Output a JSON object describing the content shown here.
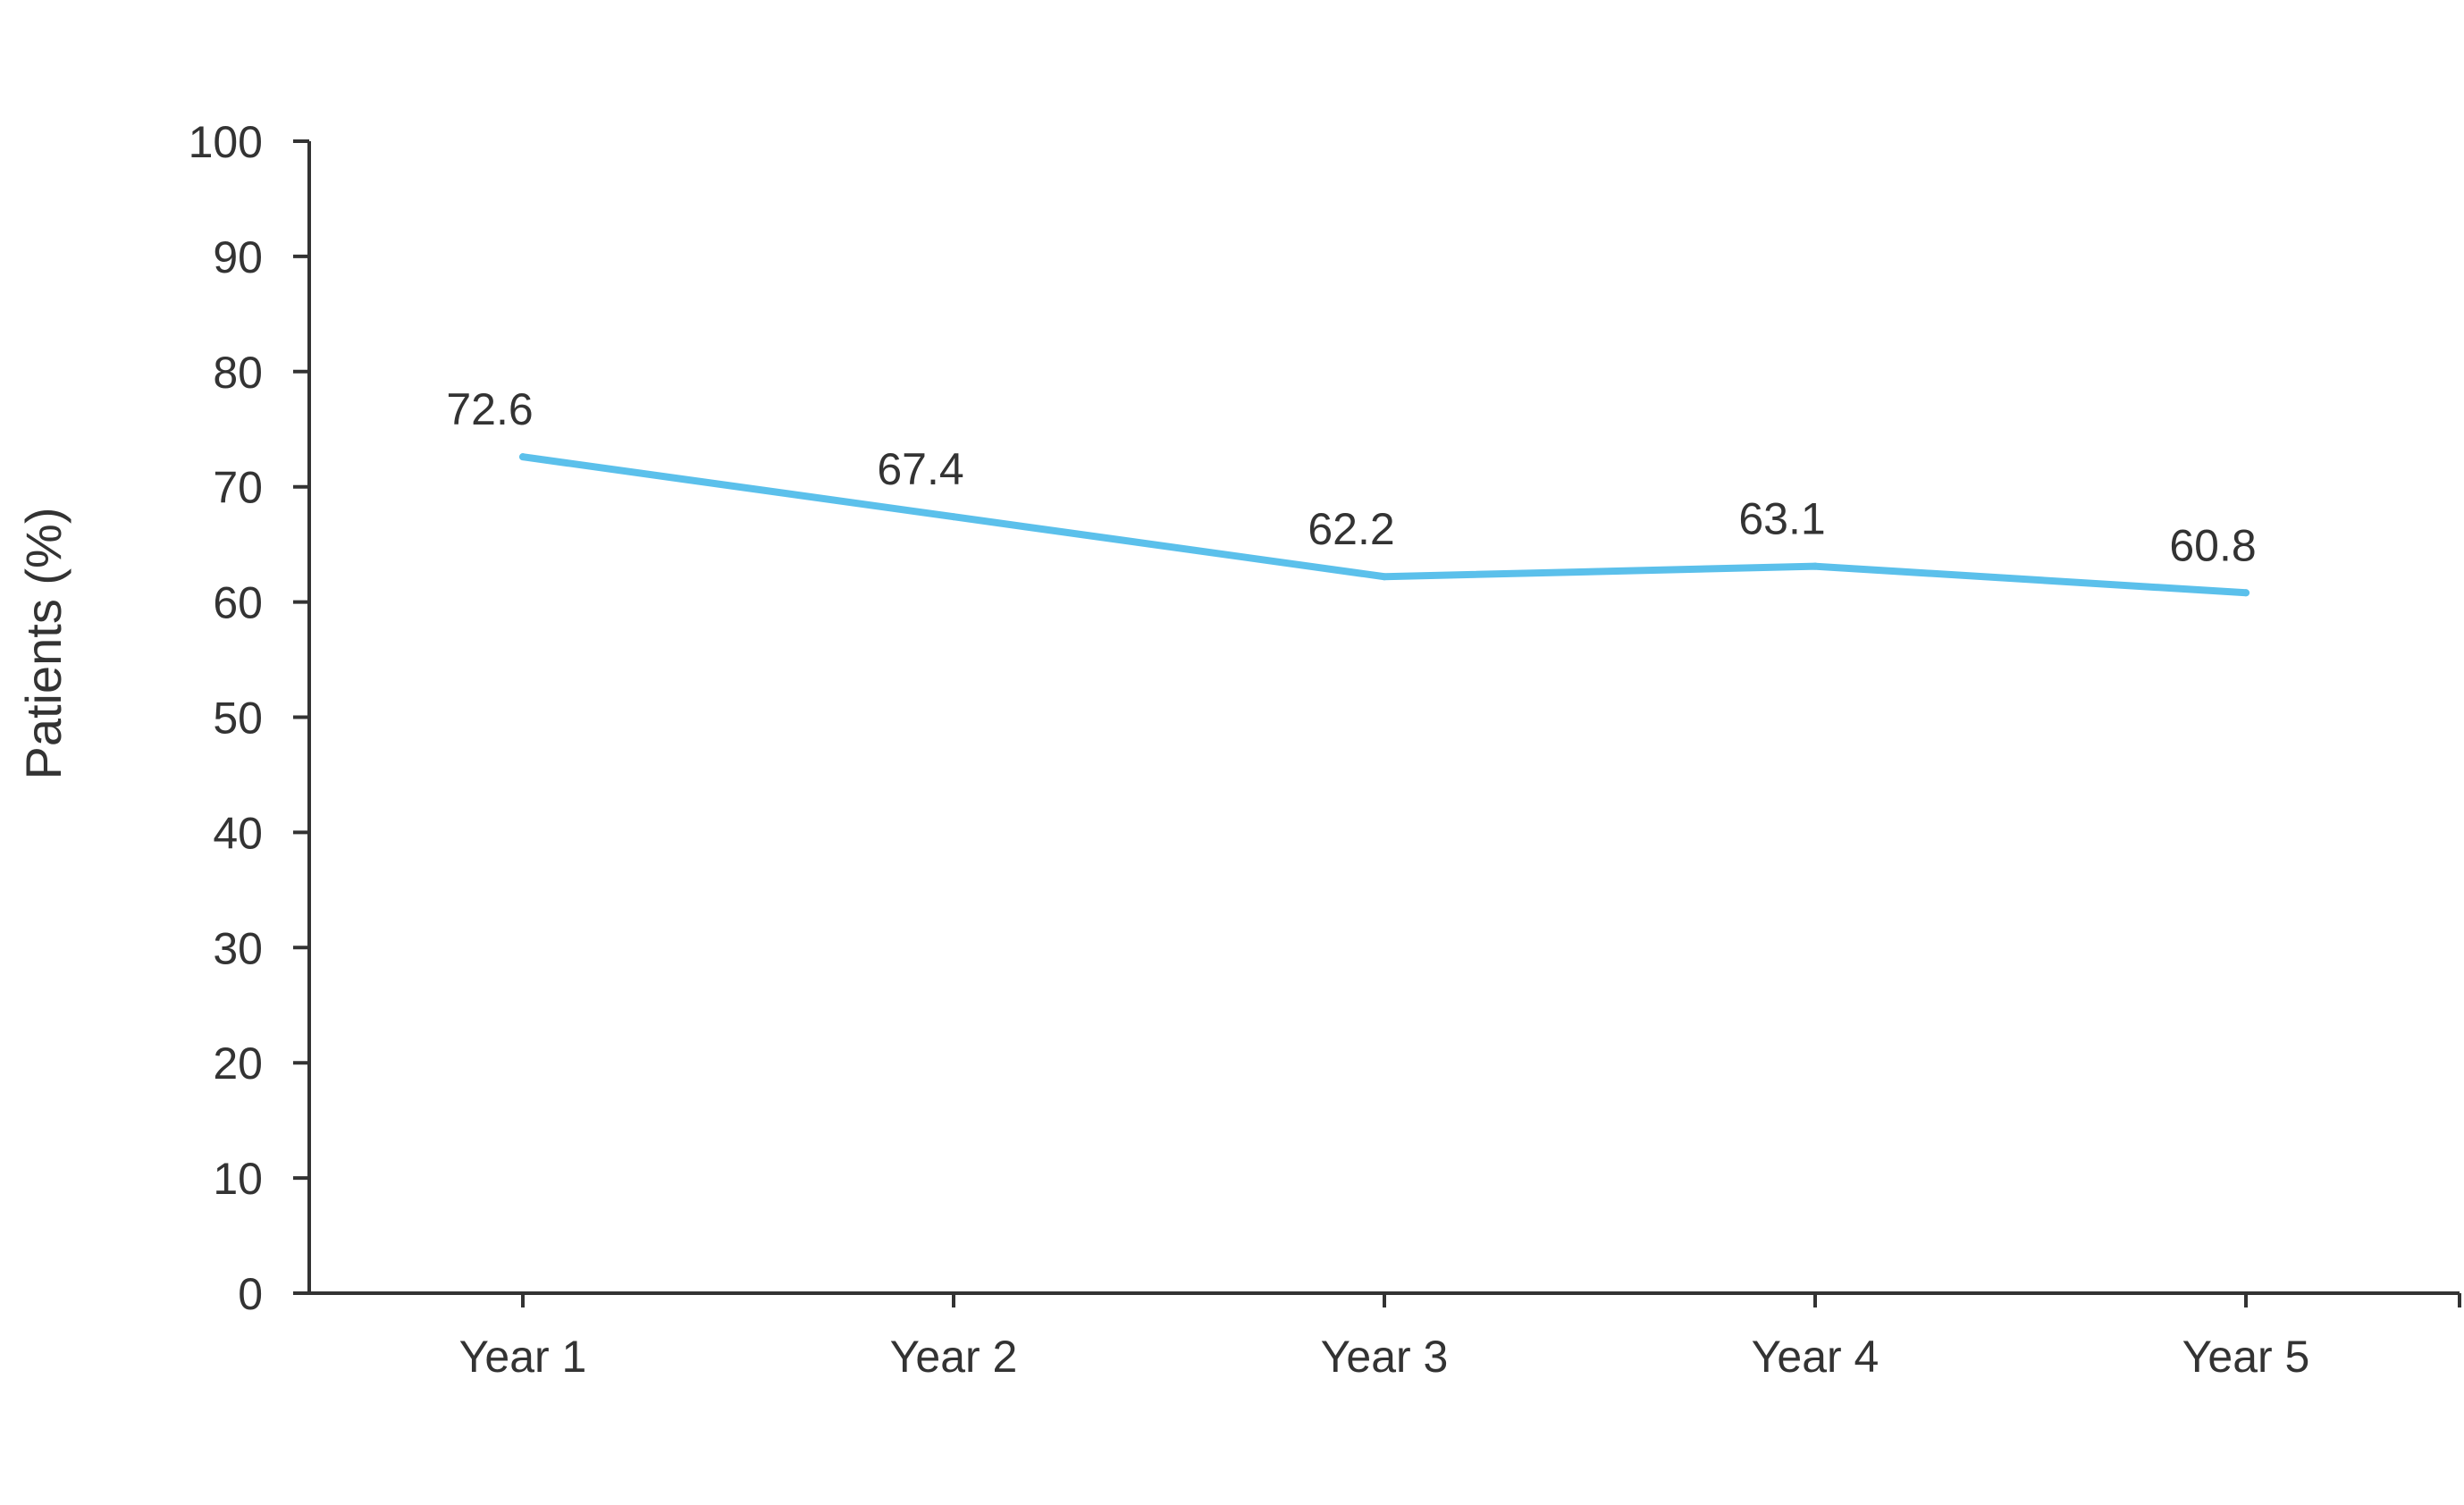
{
  "chart_data": {
    "type": "line",
    "title": "",
    "xlabel": "",
    "ylabel": "Patients (%)",
    "categories": [
      "Year 1",
      "Year 2",
      "Year 3",
      "Year 4",
      "Year 5"
    ],
    "series": [
      {
        "values": [
          72.6,
          67.4,
          62.2,
          63.1,
          60.8
        ],
        "data_labels": [
          "72.6",
          "67.4",
          "62.2",
          "63.1",
          "60.8"
        ],
        "color": "#5bc0eb"
      }
    ],
    "ylim": [
      0,
      100
    ],
    "yticks": [
      0,
      10,
      20,
      30,
      40,
      50,
      60,
      70,
      80,
      90,
      100
    ],
    "ytick_labels": [
      "0",
      "10",
      "20",
      "30",
      "40",
      "50",
      "60",
      "70",
      "80",
      "90",
      "100"
    ],
    "grid": false,
    "legend": "none"
  }
}
